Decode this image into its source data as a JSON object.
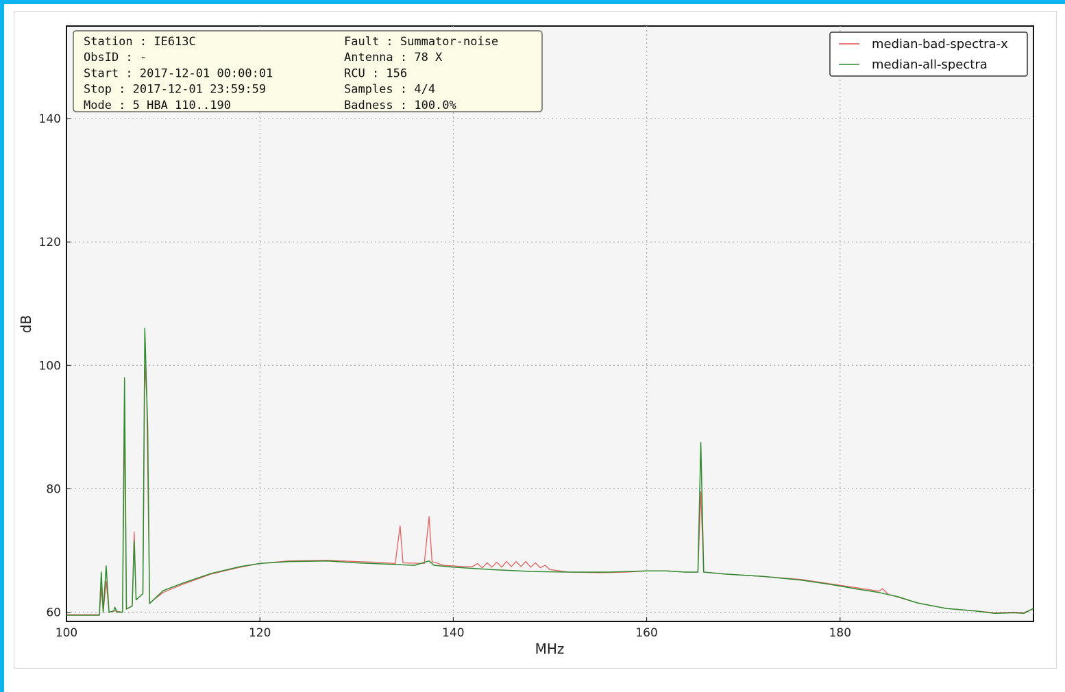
{
  "chart_data": {
    "type": "line",
    "xlabel": "MHz",
    "ylabel": "dB",
    "xlim": [
      100,
      200
    ],
    "ylim": [
      58.5,
      155
    ],
    "grid": true,
    "legend_position": "top-right",
    "x_ticks": [
      "100",
      "120",
      "140",
      "160",
      "180"
    ],
    "y_ticks": [
      "60",
      "80",
      "100",
      "120",
      "140"
    ],
    "info_box": [
      {
        "key": "Station",
        "value": "IE613C",
        "key2": "Fault",
        "value2": "Summator-noise"
      },
      {
        "key": "ObsID",
        "value": "-",
        "key2": "Antenna",
        "value2": "78  X"
      },
      {
        "key": "Start",
        "value": "2017-12-01 00:00:01",
        "key2": "RCU",
        "value2": "156"
      },
      {
        "key": "Stop",
        "value": "2017-12-01 23:59:59",
        "key2": "Samples",
        "value2": "4/4"
      },
      {
        "key": "Mode",
        "value": "5 HBA 110..190",
        "key2": "Badness",
        "value2": "100.0%"
      }
    ],
    "series": [
      {
        "name": "median-bad-spectra-x",
        "color": "#e05050",
        "points": [
          [
            100,
            59.6
          ],
          [
            103.4,
            59.6
          ],
          [
            103.6,
            64
          ],
          [
            103.8,
            60
          ],
          [
            104.1,
            65
          ],
          [
            104.4,
            60
          ],
          [
            105,
            60.2
          ],
          [
            105.8,
            60
          ],
          [
            106,
            91
          ],
          [
            106.2,
            60.5
          ],
          [
            106.8,
            61
          ],
          [
            107,
            73
          ],
          [
            107.2,
            62
          ],
          [
            107.9,
            63
          ],
          [
            108.1,
            100
          ],
          [
            108.3,
            95
          ],
          [
            108.6,
            61.5
          ],
          [
            110,
            63.2
          ],
          [
            112,
            64.5
          ],
          [
            115,
            66.2
          ],
          [
            118,
            67.3
          ],
          [
            120,
            67.9
          ],
          [
            123,
            68.3
          ],
          [
            127,
            68.4
          ],
          [
            130,
            68.2
          ],
          [
            132,
            68.1
          ],
          [
            134,
            67.9
          ],
          [
            134.5,
            74
          ],
          [
            134.8,
            68
          ],
          [
            137,
            67.9
          ],
          [
            137.5,
            75.5
          ],
          [
            137.8,
            68.2
          ],
          [
            139,
            67.6
          ],
          [
            141,
            67.4
          ],
          [
            142,
            67.4
          ],
          [
            142.5,
            67.9
          ],
          [
            143,
            67.2
          ],
          [
            143.5,
            68
          ],
          [
            144,
            67.3
          ],
          [
            144.5,
            68.1
          ],
          [
            145,
            67.3
          ],
          [
            145.5,
            68.2
          ],
          [
            146,
            67.4
          ],
          [
            146.5,
            68.2
          ],
          [
            147,
            67.4
          ],
          [
            147.5,
            68.2
          ],
          [
            148,
            67.3
          ],
          [
            148.5,
            68
          ],
          [
            149,
            67.2
          ],
          [
            149.5,
            67.6
          ],
          [
            150,
            66.9
          ],
          [
            152,
            66.5
          ],
          [
            155,
            66.4
          ],
          [
            158,
            66.5
          ],
          [
            160,
            66.7
          ],
          [
            162,
            66.7
          ],
          [
            164,
            66.5
          ],
          [
            165.3,
            66.5
          ],
          [
            165.6,
            79.5
          ],
          [
            165.9,
            66.5
          ],
          [
            168,
            66.2
          ],
          [
            172,
            65.8
          ],
          [
            176,
            65.3
          ],
          [
            179,
            64.6
          ],
          [
            182,
            63.9
          ],
          [
            184,
            63.4
          ],
          [
            184.4,
            63.8
          ],
          [
            185,
            62.9
          ],
          [
            188,
            61.5
          ],
          [
            191,
            60.6
          ],
          [
            194,
            60.2
          ],
          [
            196,
            59.9
          ],
          [
            198,
            60
          ],
          [
            199,
            59.9
          ],
          [
            200,
            60.6
          ]
        ]
      },
      {
        "name": "median-all-spectra",
        "color": "#2e8b2e",
        "points": [
          [
            100,
            59.5
          ],
          [
            103.4,
            59.5
          ],
          [
            103.6,
            66.5
          ],
          [
            103.8,
            60
          ],
          [
            104.1,
            67.5
          ],
          [
            104.4,
            60
          ],
          [
            104.9,
            60.2
          ],
          [
            105,
            60.8
          ],
          [
            105.2,
            60
          ],
          [
            105.8,
            60
          ],
          [
            106,
            98
          ],
          [
            106.2,
            60.5
          ],
          [
            106.8,
            61
          ],
          [
            107,
            71.5
          ],
          [
            107.2,
            62
          ],
          [
            107.9,
            63
          ],
          [
            108.1,
            106
          ],
          [
            108.4,
            90
          ],
          [
            108.6,
            61.4
          ],
          [
            110,
            63.5
          ],
          [
            112,
            64.7
          ],
          [
            115,
            66.3
          ],
          [
            118,
            67.4
          ],
          [
            120,
            67.9
          ],
          [
            123,
            68.2
          ],
          [
            127,
            68.3
          ],
          [
            130,
            68
          ],
          [
            133,
            67.8
          ],
          [
            136,
            67.6
          ],
          [
            137.5,
            68.3
          ],
          [
            138,
            67.6
          ],
          [
            140,
            67.3
          ],
          [
            144,
            66.9
          ],
          [
            148,
            66.6
          ],
          [
            152,
            66.5
          ],
          [
            156,
            66.5
          ],
          [
            160,
            66.7
          ],
          [
            162,
            66.7
          ],
          [
            164,
            66.5
          ],
          [
            165.3,
            66.5
          ],
          [
            165.6,
            87.5
          ],
          [
            165.9,
            66.5
          ],
          [
            168,
            66.2
          ],
          [
            172,
            65.8
          ],
          [
            176,
            65.2
          ],
          [
            179,
            64.5
          ],
          [
            182,
            63.7
          ],
          [
            184,
            63.2
          ],
          [
            186,
            62.5
          ],
          [
            188,
            61.5
          ],
          [
            191,
            60.6
          ],
          [
            194,
            60.2
          ],
          [
            196,
            59.8
          ],
          [
            198,
            59.9
          ],
          [
            199,
            59.8
          ],
          [
            200,
            60.6
          ]
        ]
      }
    ]
  }
}
